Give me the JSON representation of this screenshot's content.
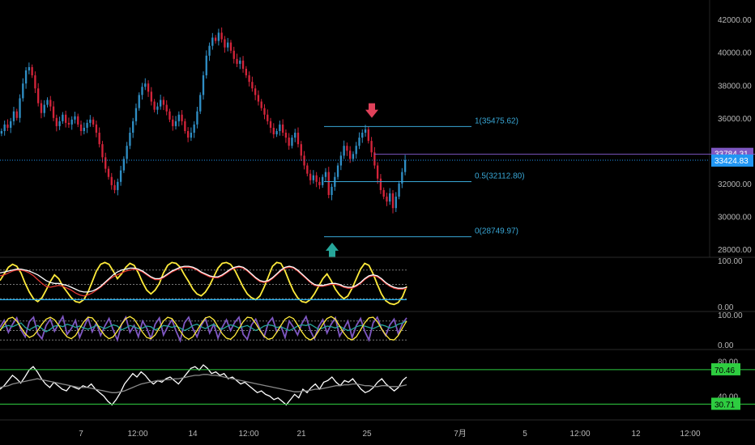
{
  "chart_data": {
    "type": "candlestick",
    "price_axis": {
      "ticks": [
        28000,
        30000,
        32000,
        34000,
        36000,
        38000,
        40000,
        42000
      ],
      "tick_labels": [
        "28000.00",
        "30000.00",
        "32000.00",
        "34000.00",
        "36000.00",
        "38000.00",
        "40000.00",
        "42000.00"
      ],
      "range": [
        27500,
        42800
      ]
    },
    "last_price": {
      "value": 33424.83,
      "label": "33424.83",
      "color": "#2196f3"
    },
    "hline_price": {
      "value": 33784.31,
      "label": "33784.31",
      "color": "#7e57c2"
    },
    "fib_levels": [
      {
        "level": "1",
        "price": 35475.62,
        "label": "1(35475.62)"
      },
      {
        "level": "0.5",
        "price": 32112.8,
        "label": "0.5(32112.80)"
      },
      {
        "level": "0",
        "price": 28749.97,
        "label": "0(28749.97)"
      }
    ],
    "markers": [
      {
        "type": "arrow-down",
        "price": 36400,
        "color": "#e0415a"
      },
      {
        "type": "arrow-up",
        "price": 28000,
        "color": "#26a69a"
      }
    ],
    "closes": [
      35200,
      35600,
      35400,
      35800,
      36400,
      36000,
      37200,
      38100,
      38900,
      39100,
      38600,
      37800,
      36900,
      36300,
      36800,
      37100,
      36700,
      36000,
      35500,
      35800,
      36200,
      35700,
      35600,
      35900,
      36100,
      35600,
      35200,
      35400,
      35700,
      35900,
      35600,
      35100,
      34400,
      33600,
      32900,
      32400,
      31900,
      31600,
      32100,
      32800,
      33500,
      34300,
      35100,
      35800,
      36600,
      37400,
      37900,
      38100,
      37600,
      37000,
      36500,
      36700,
      37100,
      36800,
      36400,
      35900,
      35500,
      35800,
      36200,
      35800,
      35200,
      34800,
      35100,
      35600,
      36400,
      37400,
      38600,
      39800,
      40400,
      40900,
      40700,
      41200,
      40800,
      40300,
      40600,
      40100,
      39600,
      39300,
      39500,
      39000,
      38600,
      38200,
      37800,
      37400,
      37000,
      36600,
      36200,
      35800,
      35400,
      35000,
      35200,
      35600,
      35100,
      34800,
      34300,
      34800,
      35100,
      34400,
      33700,
      33100,
      32600,
      32200,
      32500,
      32100,
      31900,
      32400,
      32700,
      31300,
      31800,
      32400,
      33100,
      33700,
      34300,
      34000,
      33500,
      33800,
      34300,
      34800,
      35100,
      35300,
      34600,
      33900,
      33100,
      32300,
      31600,
      31200,
      30900,
      31400,
      30500,
      31200,
      32000,
      32700,
      33424.83
    ],
    "osc1": {
      "range": [
        0,
        100
      ],
      "tick_labels": [
        "100.00",
        "0.00"
      ],
      "ticks": [
        100,
        0
      ],
      "series": [
        {
          "color": "#ffeb3b",
          "values": [
            58,
            72,
            86,
            92,
            88,
            74,
            52,
            34,
            20,
            14,
            22,
            38,
            56,
            70,
            62,
            46,
            34,
            22,
            14,
            12,
            18,
            34,
            56,
            78,
            92,
            96,
            92,
            78,
            62,
            72,
            86,
            94,
            90,
            74,
            54,
            38,
            30,
            38,
            52,
            74,
            90,
            96,
            94,
            86,
            70,
            56,
            40,
            30,
            26,
            34,
            48,
            66,
            84,
            94,
            96,
            92,
            80,
            62,
            44,
            30,
            22,
            18,
            26,
            44,
            66,
            88,
            96,
            94,
            78,
            56,
            36,
            22,
            14,
            12,
            18,
            30,
            46,
            62,
            72,
            58,
            40,
            28,
            20,
            26,
            42,
            62,
            82,
            94,
            90,
            72,
            50,
            30,
            16,
            10,
            8,
            12,
            24,
            46
          ]
        },
        {
          "color": "#e53935",
          "values": [
            68,
            70,
            74,
            78,
            80,
            80,
            78,
            74,
            68,
            60,
            52,
            46,
            44,
            46,
            48,
            46,
            42,
            38,
            32,
            28,
            26,
            28,
            32,
            38,
            44,
            52,
            60,
            66,
            70,
            74,
            78,
            80,
            82,
            80,
            76,
            70,
            64,
            60,
            60,
            64,
            70,
            76,
            80,
            84,
            86,
            86,
            84,
            80,
            74,
            70,
            66,
            64,
            64,
            68,
            74,
            80,
            84,
            86,
            84,
            78,
            70,
            62,
            56,
            54,
            56,
            62,
            70,
            78,
            84,
            86,
            84,
            78,
            70,
            62,
            54,
            48,
            46,
            46,
            48,
            50,
            50,
            48,
            44,
            42,
            42,
            46,
            52,
            60,
            66,
            68,
            66,
            60,
            52,
            46,
            42,
            40,
            40,
            42
          ]
        },
        {
          "color": "#ffffff",
          "values": [
            74,
            76,
            78,
            80,
            82,
            82,
            80,
            78,
            74,
            70,
            64,
            58,
            54,
            52,
            52,
            50,
            48,
            44,
            40,
            36,
            34,
            34,
            36,
            40,
            46,
            54,
            62,
            70,
            76,
            80,
            82,
            84,
            84,
            82,
            78,
            72,
            66,
            62,
            62,
            66,
            72,
            78,
            82,
            86,
            88,
            88,
            86,
            82,
            76,
            72,
            68,
            66,
            66,
            70,
            76,
            82,
            86,
            88,
            86,
            80,
            72,
            64,
            58,
            56,
            58,
            64,
            72,
            80,
            86,
            88,
            86,
            80,
            72,
            64,
            56,
            50,
            48,
            48,
            50,
            52,
            52,
            50,
            46,
            44,
            44,
            48,
            54,
            62,
            68,
            70,
            68,
            62,
            54,
            48,
            44,
            42,
            42,
            44
          ]
        },
        {
          "color": "#29b6f6",
          "values": [
            18,
            18,
            18,
            18,
            18,
            18,
            18,
            18,
            18,
            18,
            18,
            18,
            18,
            18,
            18,
            18,
            18,
            18,
            18,
            18,
            18,
            18,
            18,
            18,
            18,
            18,
            18,
            18,
            18,
            18,
            18,
            18,
            18,
            18,
            18,
            18,
            18,
            18,
            18,
            18,
            18,
            18,
            18,
            18,
            18,
            18,
            18,
            18,
            18,
            18,
            18,
            18,
            18,
            18,
            18,
            18,
            18,
            18,
            18,
            18,
            18,
            18,
            18,
            18,
            18,
            18,
            18,
            18,
            18,
            18,
            18,
            18,
            18,
            18,
            18,
            18,
            18,
            18,
            18,
            18,
            18,
            18,
            18,
            18,
            18,
            18,
            18,
            18,
            18,
            18,
            18,
            18,
            18,
            18,
            18,
            18,
            18,
            18
          ]
        }
      ]
    },
    "osc2": {
      "range": [
        0,
        100
      ],
      "tick_labels": [
        "100.00",
        "0.00"
      ],
      "ticks": [
        100,
        0
      ],
      "series": [
        {
          "color": "#7e57c2",
          "values": [
            60,
            82,
            44,
            70,
            90,
            52,
            30,
            78,
            92,
            40,
            24,
            66,
            86,
            48,
            72,
            94,
            38,
            56,
            82,
            28,
            60,
            90,
            46,
            74,
            34,
            64,
            88,
            52,
            20,
            70,
            92,
            44,
            66,
            30,
            80,
            58,
            24,
            70,
            90,
            36,
            62,
            84,
            48,
            18,
            74,
            92,
            56,
            30,
            66,
            88,
            42,
            70,
            26,
            60,
            84,
            50,
            76,
            92,
            38,
            22,
            68,
            86,
            54,
            30,
            74,
            90,
            46,
            64,
            28,
            80,
            60,
            36,
            72,
            94,
            50,
            24,
            62,
            84,
            42,
            70,
            90,
            32,
            56,
            80,
            28,
            66,
            88,
            48,
            20,
            74,
            92,
            56,
            34,
            68,
            86,
            40,
            72,
            90
          ]
        },
        {
          "color": "#26a69a",
          "values": [
            52,
            62,
            66,
            62,
            68,
            74,
            60,
            52,
            60,
            66,
            56,
            46,
            54,
            64,
            66,
            62,
            70,
            66,
            60,
            64,
            58,
            54,
            60,
            66,
            62,
            56,
            62,
            68,
            64,
            52,
            58,
            66,
            62,
            56,
            58,
            64,
            62,
            52,
            58,
            66,
            64,
            60,
            64,
            58,
            50,
            56,
            66,
            70,
            62,
            56,
            64,
            70,
            60,
            54,
            62,
            68,
            64,
            58,
            62,
            66,
            58,
            50,
            56,
            64,
            68,
            66,
            60,
            62,
            56,
            50,
            56,
            64,
            68,
            66,
            70,
            62,
            54,
            58,
            64,
            62,
            58,
            64,
            56,
            50,
            54,
            62,
            66,
            64,
            60,
            56,
            62,
            68,
            64,
            58,
            62,
            70,
            74,
            80
          ]
        },
        {
          "color": "#ffeb3b",
          "values": [
            50,
            70,
            88,
            92,
            80,
            60,
            40,
            28,
            34,
            50,
            70,
            86,
            92,
            84,
            66,
            46,
            30,
            24,
            34,
            56,
            78,
            92,
            90,
            74,
            52,
            34,
            24,
            30,
            48,
            70,
            88,
            94,
            86,
            66,
            44,
            28,
            24,
            36,
            58,
            80,
            92,
            88,
            70,
            48,
            30,
            22,
            30,
            50,
            72,
            90,
            94,
            84,
            62,
            40,
            26,
            22,
            34,
            56,
            78,
            92,
            90,
            72,
            50,
            32,
            22,
            26,
            44,
            66,
            86,
            94,
            88,
            68,
            46,
            28,
            20,
            28,
            48,
            70,
            88,
            94,
            86,
            64,
            42,
            26,
            20,
            30,
            52,
            74,
            90,
            92,
            78,
            56,
            36,
            22,
            20,
            34,
            58,
            80
          ]
        }
      ]
    },
    "rsi": {
      "range": [
        20,
        90
      ],
      "tick_labels": [
        "80.00",
        "40.00"
      ],
      "ticks": [
        80,
        40
      ],
      "upper_label": "70.46",
      "lower_label": "30.71",
      "upper_value": 70.46,
      "lower_value": 30.71,
      "series": [
        {
          "color": "#ffffff",
          "values": [
            48,
            52,
            58,
            64,
            60,
            55,
            62,
            70,
            74,
            68,
            60,
            54,
            50,
            56,
            52,
            48,
            46,
            52,
            50,
            48,
            52,
            50,
            54,
            48,
            44,
            40,
            34,
            30,
            36,
            44,
            54,
            60,
            66,
            62,
            68,
            64,
            58,
            54,
            58,
            56,
            60,
            62,
            58,
            54,
            60,
            66,
            72,
            74,
            70,
            76,
            72,
            66,
            68,
            64,
            66,
            60,
            62,
            58,
            54,
            56,
            52,
            48,
            44,
            46,
            42,
            40,
            36,
            38,
            34,
            30,
            36,
            42,
            38,
            48,
            44,
            50,
            54,
            48,
            56,
            58,
            62,
            56,
            52,
            58,
            56,
            60,
            54,
            48,
            44,
            46,
            50,
            56,
            60,
            54,
            50,
            46,
            50,
            58,
            62
          ]
        },
        {
          "color": "#8a8a8a",
          "values": [
            50,
            51,
            52,
            54,
            55,
            56,
            57,
            58,
            59,
            60,
            59,
            58,
            57,
            56,
            55,
            54,
            53,
            52,
            51,
            50,
            50,
            50,
            49,
            48,
            47,
            46,
            45,
            44,
            44,
            45,
            46,
            48,
            50,
            52,
            54,
            55,
            56,
            57,
            58,
            58,
            59,
            59,
            60,
            60,
            61,
            62,
            63,
            64,
            64,
            65,
            65,
            64,
            64,
            63,
            62,
            61,
            60,
            59,
            58,
            57,
            56,
            55,
            54,
            53,
            52,
            51,
            50,
            49,
            48,
            47,
            46,
            45,
            45,
            46,
            46,
            47,
            48,
            48,
            49,
            50,
            51,
            52,
            52,
            53,
            53,
            54,
            54,
            53,
            52,
            52,
            51,
            51,
            52,
            52,
            51,
            51,
            51,
            52,
            53
          ]
        }
      ]
    },
    "x_labels": [
      "7",
      "12:00",
      "14",
      "12:00",
      "21",
      "25",
      "7月",
      "5",
      "12:00",
      "12",
      "12:00"
    ]
  }
}
